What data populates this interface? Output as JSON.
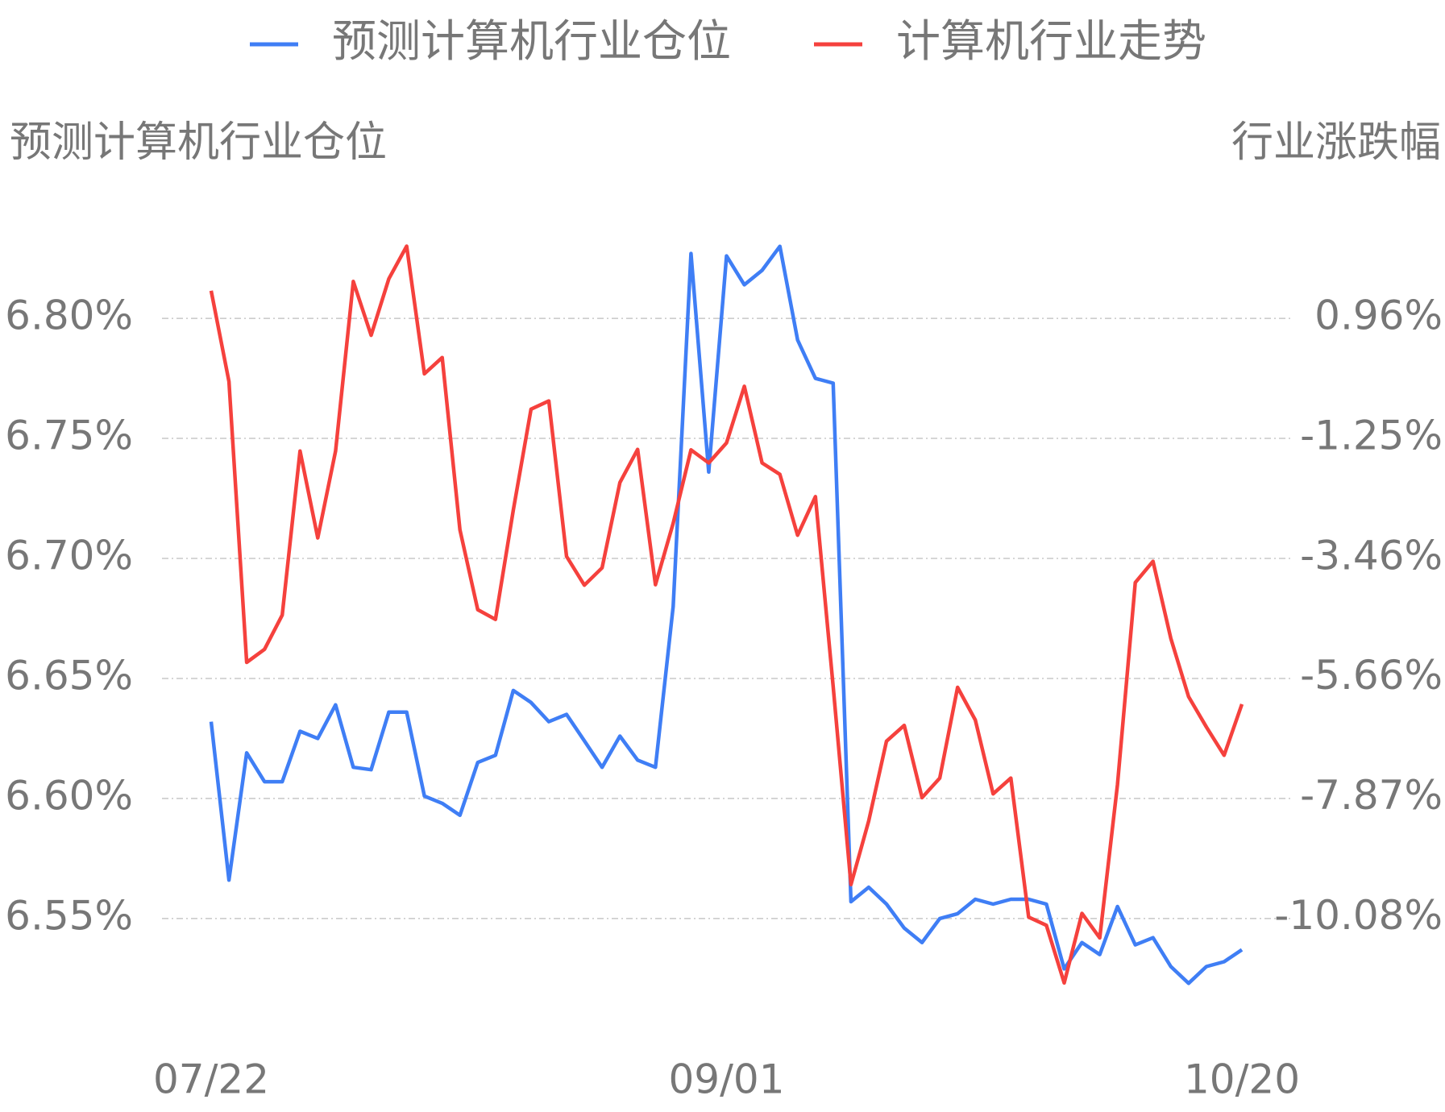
{
  "chart_data": {
    "type": "line",
    "y_label": "预测计算机行业仓位",
    "y2_label": "行业涨跌幅",
    "categories": [
      "07/22",
      null,
      null,
      null,
      null,
      null,
      null,
      null,
      null,
      null,
      null,
      null,
      null,
      null,
      null,
      null,
      null,
      null,
      null,
      null,
      null,
      null,
      null,
      null,
      null,
      null,
      null,
      null,
      null,
      "09/01",
      null,
      null,
      null,
      null,
      null,
      null,
      null,
      null,
      null,
      null,
      null,
      null,
      null,
      null,
      null,
      null,
      null,
      null,
      null,
      null,
      null,
      null,
      null,
      null,
      null,
      null,
      null,
      null,
      "10/20"
    ],
    "series": [
      {
        "name": "预测计算机行业仓位",
        "color": "#3f7ef5",
        "values": [
          6.632,
          6.566,
          6.619,
          6.607,
          6.607,
          6.628,
          6.625,
          6.639,
          6.613,
          6.612,
          6.636,
          6.636,
          6.601,
          6.598,
          6.593,
          6.615,
          6.618,
          6.645,
          6.64,
          6.632,
          6.635,
          6.624,
          6.613,
          6.626,
          6.616,
          6.613,
          6.68,
          6.827,
          6.736,
          6.826,
          6.814,
          6.82,
          6.83,
          6.791,
          6.775,
          6.773,
          6.557,
          6.563,
          6.556,
          6.546,
          6.54,
          6.55,
          6.552,
          6.558,
          6.556,
          6.558,
          6.558,
          6.556,
          6.529,
          6.54,
          6.535,
          6.555,
          6.539,
          6.542,
          6.53,
          6.523,
          6.53,
          6.532,
          6.537
        ]
      },
      {
        "name": "计算机行业走势",
        "color": "#f5413d",
        "axis": "y2",
        "values": [
          1.47,
          -0.2,
          -5.37,
          -5.13,
          -4.5,
          -1.48,
          -3.08,
          -1.48,
          1.64,
          0.65,
          1.69,
          2.29,
          -0.06,
          0.24,
          -2.93,
          -4.4,
          -4.58,
          -2.57,
          -0.71,
          -0.56,
          -3.42,
          -3.95,
          -3.63,
          -2.06,
          -1.45,
          -3.94,
          -2.81,
          -1.46,
          -1.7,
          -1.33,
          -0.29,
          -1.7,
          -1.91,
          -3.03,
          -2.32,
          -5.81,
          -9.46,
          -8.29,
          -6.82,
          -6.53,
          -7.86,
          -7.5,
          -5.83,
          -6.43,
          -7.79,
          -7.5,
          -10.06,
          -10.21,
          -11.27,
          -9.99,
          -10.44,
          -7.62,
          -3.9,
          -3.51,
          -4.93,
          -6.0,
          -6.56,
          -7.08,
          -6.14
        ]
      }
    ],
    "ylim": [
      6.508,
      6.844
    ],
    "yticks": [
      {
        "value": 6.55,
        "label": "6.55%"
      },
      {
        "value": 6.6,
        "label": "6.60%"
      },
      {
        "value": 6.65,
        "label": "6.65%"
      },
      {
        "value": 6.7,
        "label": "6.70%"
      },
      {
        "value": 6.75,
        "label": "6.75%"
      },
      {
        "value": 6.8,
        "label": "6.80%"
      }
    ],
    "y2lim": [
      -11.94,
      2.905
    ],
    "y2ticks": [
      {
        "value": -10.08,
        "label": "-10.08%"
      },
      {
        "value": -7.87,
        "label": "-7.87%"
      },
      {
        "value": -5.66,
        "label": "-5.66%"
      },
      {
        "value": -3.46,
        "label": "-3.46%"
      },
      {
        "value": -1.25,
        "label": "-1.25%"
      },
      {
        "value": 0.96,
        "label": "0.96%"
      }
    ],
    "grid": true,
    "legend": "top"
  }
}
